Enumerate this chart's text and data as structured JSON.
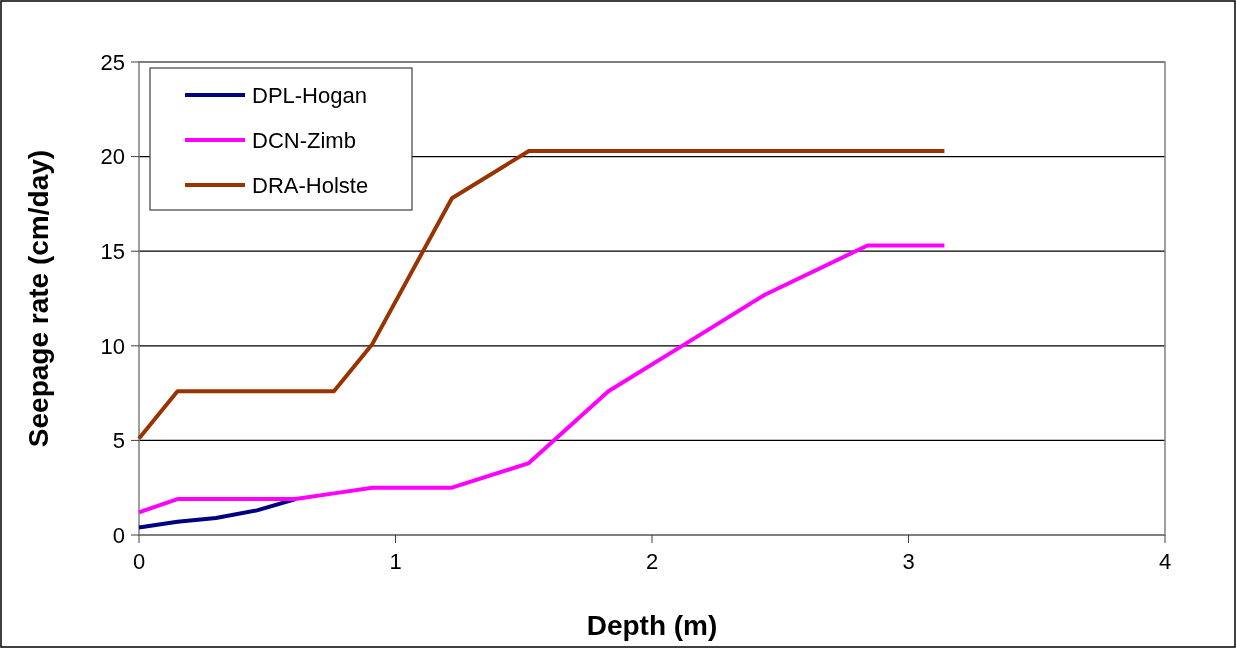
{
  "chart_data": {
    "type": "line",
    "xlabel": "Depth (m)",
    "ylabel": "Seepage rate (cm/day)",
    "xlim": [
      0,
      4
    ],
    "xticks": [
      0,
      1,
      2,
      3,
      4
    ],
    "ylim": [
      0,
      25
    ],
    "yticks": [
      0,
      5,
      10,
      15,
      20,
      25
    ],
    "grid": "y",
    "legend": "top left",
    "marker": "none",
    "line_style": "solid",
    "series": [
      {
        "name": "DPL-Hogan",
        "color": "#000080",
        "x": [
          0,
          0.15,
          0.3,
          0.46,
          0.61
        ],
        "values": [
          0.4,
          0.7,
          0.9,
          1.3,
          1.9
        ]
      },
      {
        "name": "DCN-Zimb",
        "color": "#ff00ff",
        "x": [
          0,
          0.15,
          0.3,
          0.46,
          0.61,
          0.76,
          0.91,
          1.22,
          1.52,
          1.83,
          2.13,
          2.44,
          2.84,
          3.14
        ],
        "values": [
          1.2,
          1.9,
          1.9,
          1.9,
          1.9,
          2.2,
          2.5,
          2.5,
          3.8,
          7.6,
          10.1,
          12.7,
          15.3,
          15.3
        ]
      },
      {
        "name": "DRA-Holste",
        "color": "#993300",
        "x": [
          0,
          0.15,
          0.3,
          0.46,
          0.61,
          0.76,
          0.91,
          1.22,
          1.52,
          1.83,
          2.13,
          2.44,
          2.84,
          3.14
        ],
        "values": [
          5.1,
          7.6,
          7.6,
          7.6,
          7.6,
          7.6,
          10.1,
          17.8,
          20.3,
          20.3,
          20.3,
          20.3,
          20.3,
          20.3
        ]
      }
    ]
  }
}
